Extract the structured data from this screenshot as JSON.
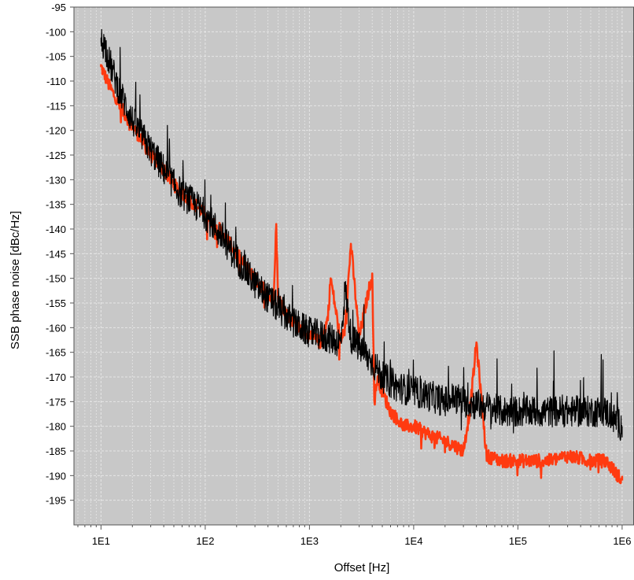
{
  "chart_data": {
    "type": "line",
    "xlabel": "Offset [Hz]",
    "ylabel": "SSB phase noise  [dBc/Hz]",
    "x_scale": "log",
    "xlim": [
      5.5,
      1300000
    ],
    "ylim": [
      -200,
      -95
    ],
    "x_ticks": [
      10,
      100,
      1000,
      10000,
      100000,
      1000000
    ],
    "x_tick_labels": [
      "1E1",
      "1E2",
      "1E3",
      "1E4",
      "1E5",
      "1E6"
    ],
    "y_ticks": [
      -95,
      -100,
      -105,
      -110,
      -115,
      -120,
      -125,
      -130,
      -135,
      -140,
      -145,
      -150,
      -155,
      -160,
      -165,
      -170,
      -175,
      -180,
      -185,
      -190,
      -195
    ],
    "y_tick_labels": [
      "-95",
      "-100",
      "-105",
      "-110",
      "-115",
      "-120",
      "-125",
      "-130",
      "-135",
      "-140",
      "-145",
      "-150",
      "-155",
      "-160",
      "-165",
      "-170",
      "-175",
      "-180",
      "-185",
      "-190",
      "-195"
    ],
    "grid": true,
    "legend": "none",
    "colors": {
      "plot_bg": "#c8c8c8",
      "grid": "#e6e6e6"
    },
    "series": [
      {
        "color": "#ff3a10",
        "x": [
          10,
          12,
          15,
          20,
          30,
          40,
          50,
          70,
          100,
          150,
          200,
          300,
          400,
          450,
          480,
          500,
          600,
          800,
          1000,
          1300,
          1500,
          1600,
          2000,
          2200,
          2500,
          3000,
          3500,
          4000,
          4200,
          4500,
          5000,
          6000,
          8000,
          10000,
          15000,
          20000,
          25000,
          30000,
          35000,
          40000,
          50000,
          70000,
          100000,
          150000,
          200000,
          300000,
          500000,
          700000,
          1000000
        ],
        "y": [
          -107,
          -111,
          -115,
          -119,
          -125,
          -128,
          -131,
          -134,
          -137,
          -141,
          -145,
          -150,
          -153,
          -155,
          -139,
          -154,
          -157,
          -160,
          -162,
          -163,
          -158,
          -150,
          -163,
          -160,
          -143,
          -162,
          -155,
          -149,
          -175,
          -170,
          -173,
          -177,
          -180,
          -180,
          -182,
          -183,
          -184,
          -185,
          -176,
          -163,
          -186,
          -187,
          -187,
          -187,
          -187,
          -186,
          -187,
          -187,
          -191
        ]
      },
      {
        "color": "#000000",
        "x": [
          10,
          11,
          12,
          15,
          20,
          30,
          40,
          50,
          60,
          70,
          100,
          150,
          200,
          300,
          400,
          500,
          700,
          1000,
          1500,
          2000,
          2200,
          2500,
          3000,
          4000,
          5000,
          7000,
          10000,
          15000,
          20000,
          25000,
          30000,
          50000,
          70000,
          100000,
          200000,
          300000,
          500000,
          700000,
          1000000
        ],
        "y": [
          -102,
          -103,
          -106,
          -112,
          -118,
          -124,
          -128,
          -131,
          -133,
          -134,
          -137,
          -142,
          -146,
          -151,
          -154,
          -156,
          -159,
          -161,
          -162,
          -163,
          -152,
          -162,
          -164,
          -167,
          -170,
          -172,
          -173,
          -174,
          -175,
          -174,
          -175,
          -176,
          -177,
          -177,
          -177,
          -177,
          -177,
          -177,
          -180
        ]
      }
    ]
  }
}
